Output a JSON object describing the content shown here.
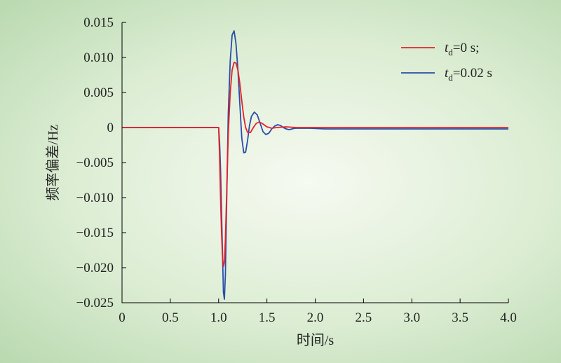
{
  "chart_data": {
    "type": "line",
    "title": "",
    "xlabel": "时间/s",
    "ylabel": "频率偏差/Hz",
    "xlim": [
      0,
      4.0
    ],
    "ylim": [
      -0.025,
      0.015
    ],
    "x_ticks": [
      "0",
      "0.5",
      "1.0",
      "1.5",
      "2.0",
      "2.5",
      "3.0",
      "3.5",
      "4.0"
    ],
    "x_tick_values": [
      0,
      0.5,
      1.0,
      1.5,
      2.0,
      2.5,
      3.0,
      3.5,
      4.0
    ],
    "y_ticks": [
      "0.015",
      "0.010",
      "0.005",
      "0",
      "−0.005",
      "−0.010",
      "−0.015",
      "−0.020",
      "−0.025"
    ],
    "y_tick_values": [
      0.015,
      0.01,
      0.005,
      0,
      -0.005,
      -0.01,
      -0.015,
      -0.02,
      -0.025
    ],
    "grid": false,
    "legend_position": "top-right",
    "series": [
      {
        "name_main": "t",
        "name_sub": "d",
        "name_rest": "=0 s;",
        "color": "#e8202a",
        "x": [
          0,
          1.0,
          1.01,
          1.02,
          1.03,
          1.04,
          1.05,
          1.06,
          1.07,
          1.08,
          1.1,
          1.12,
          1.14,
          1.16,
          1.18,
          1.2,
          1.22,
          1.24,
          1.26,
          1.28,
          1.3,
          1.33,
          1.36,
          1.39,
          1.42,
          1.45,
          1.5,
          1.55,
          1.6,
          1.7,
          1.8,
          2.0,
          4.0
        ],
        "y": [
          0,
          0,
          -0.004,
          -0.01,
          -0.015,
          -0.0185,
          -0.0198,
          -0.0192,
          -0.016,
          -0.011,
          -0.001,
          0.005,
          0.0082,
          0.0093,
          0.0092,
          0.0082,
          0.0062,
          0.0038,
          0.0015,
          0.0,
          -0.0007,
          -0.0007,
          0.0,
          0.0006,
          0.0008,
          0.0006,
          0.0001,
          -0.0001,
          0.0,
          0.0001,
          0.0,
          0,
          0
        ]
      },
      {
        "name_main": "t",
        "name_sub": "d",
        "name_rest": "=0.02 s",
        "color": "#2a4da8",
        "x": [
          0,
          1.0,
          1.01,
          1.02,
          1.03,
          1.04,
          1.05,
          1.06,
          1.07,
          1.08,
          1.1,
          1.12,
          1.14,
          1.16,
          1.18,
          1.2,
          1.22,
          1.24,
          1.26,
          1.28,
          1.3,
          1.32,
          1.34,
          1.37,
          1.4,
          1.43,
          1.46,
          1.49,
          1.52,
          1.55,
          1.58,
          1.61,
          1.64,
          1.67,
          1.7,
          1.73,
          1.76,
          1.79,
          1.85,
          1.95,
          2.1,
          4.0
        ],
        "y": [
          0,
          0,
          -0.002,
          -0.006,
          -0.012,
          -0.018,
          -0.0235,
          -0.0245,
          -0.021,
          -0.013,
          0.002,
          0.0095,
          0.0132,
          0.0138,
          0.012,
          0.0082,
          0.0032,
          -0.0015,
          -0.0036,
          -0.0035,
          -0.0018,
          0.0003,
          0.0016,
          0.0022,
          0.0018,
          0.0006,
          -0.0006,
          -0.001,
          -0.0008,
          -0.0002,
          0.0002,
          0.0004,
          0.0003,
          0.0,
          -0.0002,
          -0.0003,
          -0.0002,
          -0.0001,
          -0.0001,
          -0.0001,
          -0.0002,
          -0.0002
        ]
      }
    ]
  }
}
